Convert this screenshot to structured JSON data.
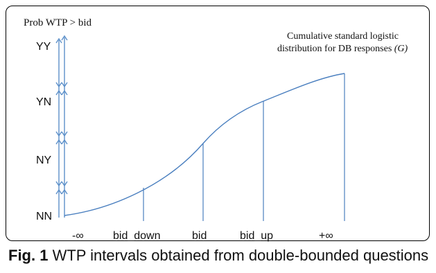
{
  "y_axis_title": "Prob WTP > bid",
  "curve_label": {
    "line1": "Cumulative standard logistic",
    "line2_prefix": "distribution for DB responses ",
    "line2_symbol": "(G)"
  },
  "y_intervals": [
    "YY",
    "YN",
    "NY",
    "NN"
  ],
  "x_labels": [
    "-∞",
    "bid_down",
    "bid",
    "bid_up",
    "+∞"
  ],
  "caption": {
    "lead": "Fig. 1",
    "text": " WTP intervals obtained from double-bounded questions"
  },
  "colors": {
    "axis": "#5b8fc9",
    "curve": "#4a7fbf",
    "frame": "#000000"
  }
}
